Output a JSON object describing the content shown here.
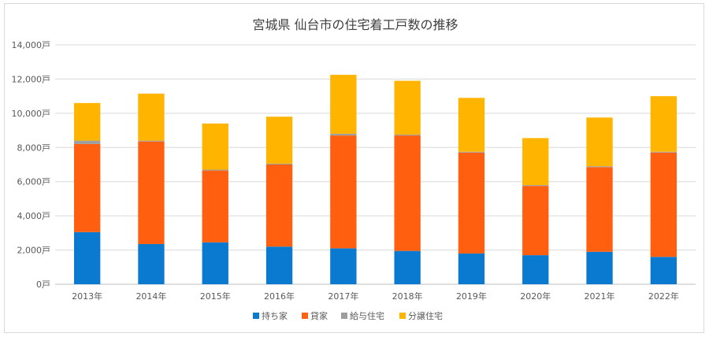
{
  "chart_data": {
    "type": "bar",
    "stacked": true,
    "title": "宮城県 仙台市の住宅着工戸数の推移",
    "xlabel": "",
    "ylabel": "",
    "categories": [
      "2013年",
      "2014年",
      "2015年",
      "2016年",
      "2017年",
      "2018年",
      "2019年",
      "2020年",
      "2021年",
      "2022年"
    ],
    "series": [
      {
        "name": "持ち家",
        "color": "#0a7ad1",
        "values": [
          3050,
          2350,
          2450,
          2200,
          2100,
          1950,
          1800,
          1700,
          1900,
          1600
        ]
      },
      {
        "name": "貸家",
        "color": "#ff5f0f",
        "values": [
          5150,
          6000,
          4200,
          4800,
          6600,
          6750,
          5900,
          4050,
          4950,
          6100
        ]
      },
      {
        "name": "給与住宅",
        "color": "#9e9e9e",
        "values": [
          200,
          50,
          50,
          50,
          100,
          50,
          50,
          50,
          50,
          50
        ]
      },
      {
        "name": "分譲住宅",
        "color": "#ffb400",
        "values": [
          2200,
          2750,
          2700,
          2750,
          3450,
          3150,
          3150,
          2750,
          2850,
          3250
        ]
      }
    ],
    "ylim": [
      0,
      14000
    ],
    "yticks": [
      0,
      2000,
      4000,
      6000,
      8000,
      10000,
      12000,
      14000
    ],
    "ytick_labels": [
      "0戸",
      "2,000戸",
      "4,000戸",
      "6,000戸",
      "8,000戸",
      "10,000戸",
      "12,000戸",
      "14,000戸"
    ],
    "grid": true,
    "legend_position": "bottom"
  }
}
